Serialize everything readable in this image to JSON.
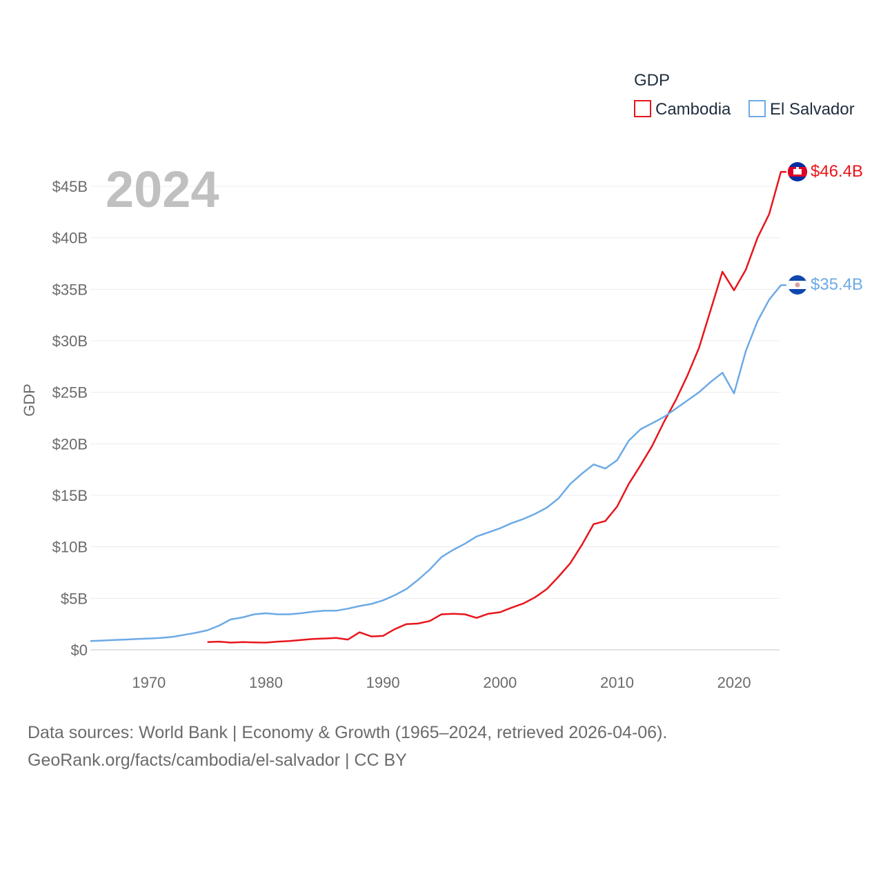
{
  "chart_data": {
    "type": "line",
    "title": "GDP",
    "year_label": "2024",
    "ylabel": "GDP",
    "xlabel": "",
    "xlim": [
      1965,
      2024
    ],
    "ylim": [
      0,
      47
    ],
    "x_ticks": [
      1970,
      1980,
      1990,
      2000,
      2010,
      2020
    ],
    "x_tick_labels": [
      "1970",
      "1980",
      "1990",
      "2000",
      "2010",
      "2020"
    ],
    "y_ticks": [
      0,
      5,
      10,
      15,
      20,
      25,
      30,
      35,
      40,
      45
    ],
    "y_tick_labels": [
      "$0",
      "$5B",
      "$10B",
      "$15B",
      "$20B",
      "$25B",
      "$30B",
      "$35B",
      "$40B",
      "$45B"
    ],
    "grid": true,
    "legend_position": "top-right",
    "series": [
      {
        "name": "Cambodia",
        "color": "#e8151b",
        "end_label": "$46.4B",
        "flag": "cambodia-flag",
        "x": [
          1975,
          1976,
          1977,
          1978,
          1979,
          1980,
          1981,
          1982,
          1983,
          1984,
          1985,
          1986,
          1987,
          1988,
          1989,
          1990,
          1991,
          1992,
          1993,
          1994,
          1995,
          1996,
          1997,
          1998,
          1999,
          2000,
          2001,
          2002,
          2003,
          2004,
          2005,
          2006,
          2007,
          2008,
          2009,
          2010,
          2011,
          2012,
          2013,
          2014,
          2015,
          2016,
          2017,
          2018,
          2019,
          2020,
          2021,
          2022,
          2023,
          2024
        ],
        "values": [
          0.75,
          0.8,
          0.7,
          0.75,
          0.72,
          0.7,
          0.8,
          0.85,
          0.95,
          1.05,
          1.1,
          1.15,
          1.0,
          1.7,
          1.3,
          1.35,
          2.0,
          2.5,
          2.55,
          2.8,
          3.45,
          3.5,
          3.45,
          3.1,
          3.5,
          3.65,
          4.1,
          4.5,
          5.1,
          5.9,
          7.1,
          8.4,
          10.2,
          12.2,
          12.5,
          13.9,
          16.1,
          17.9,
          19.8,
          22.1,
          24.2,
          26.6,
          29.3,
          33.0,
          36.7,
          34.9,
          36.9,
          40.0,
          42.3,
          46.4
        ]
      },
      {
        "name": "El Salvador",
        "color": "#6caae6",
        "end_label": "$35.4B",
        "flag": "el-salvador-flag",
        "x": [
          1965,
          1966,
          1967,
          1968,
          1969,
          1970,
          1971,
          1972,
          1973,
          1974,
          1975,
          1976,
          1977,
          1978,
          1979,
          1980,
          1981,
          1982,
          1983,
          1984,
          1985,
          1986,
          1987,
          1988,
          1989,
          1990,
          1991,
          1992,
          1993,
          1994,
          1995,
          1996,
          1997,
          1998,
          1999,
          2000,
          2001,
          2002,
          2003,
          2004,
          2005,
          2006,
          2007,
          2008,
          2009,
          2010,
          2011,
          2012,
          2013,
          2014,
          2015,
          2016,
          2017,
          2018,
          2019,
          2020,
          2021,
          2022,
          2023,
          2024
        ],
        "values": [
          0.85,
          0.9,
          0.95,
          1.0,
          1.05,
          1.1,
          1.15,
          1.25,
          1.45,
          1.65,
          1.9,
          2.35,
          2.95,
          3.15,
          3.45,
          3.55,
          3.45,
          3.45,
          3.55,
          3.7,
          3.8,
          3.8,
          4.0,
          4.25,
          4.45,
          4.8,
          5.3,
          5.9,
          6.8,
          7.8,
          9.0,
          9.7,
          10.3,
          11.0,
          11.4,
          11.8,
          12.3,
          12.7,
          13.2,
          13.8,
          14.7,
          16.1,
          17.1,
          18.0,
          17.6,
          18.4,
          20.3,
          21.4,
          22.0,
          22.6,
          23.4,
          24.2,
          25.0,
          26.0,
          26.9,
          24.9,
          29.0,
          31.9,
          34.0,
          35.4
        ]
      }
    ]
  },
  "source": {
    "line1": "Data sources: World Bank | Economy & Growth (1965–2024, retrieved 2026-04-06).",
    "line2": "GeoRank.org/facts/cambodia/el-salvador | CC BY"
  }
}
